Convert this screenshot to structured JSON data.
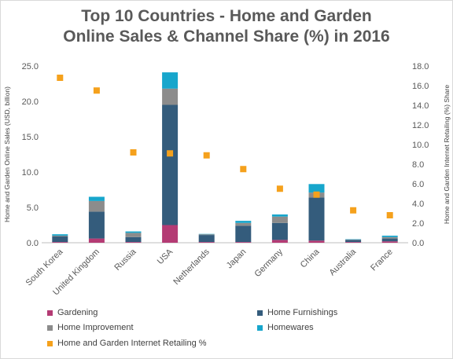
{
  "title_line1": "Top 10 Countries - Home and Garden",
  "title_line2": "Online Sales & Channel Share (%) in 2016",
  "colors": {
    "Gardening": "#b43b74",
    "Home Furnishings": "#345c7c",
    "Home Improvement": "#8c8c8c",
    "Homewares": "#17a6cc",
    "Home and Garden Internet Retailing %": "#f5a11c"
  },
  "chart_data": {
    "type": "bar",
    "stacked": true,
    "title": "Top 10 Countries - Home and Garden Online Sales & Channel Share (%) in 2016",
    "categories": [
      "South Korea",
      "United Kingdom",
      "Russia",
      "USA",
      "Netherlands",
      "Japan",
      "Germany",
      "China",
      "Australia",
      "France"
    ],
    "ylabel": "Home and Garden Online Sales (USD, billion)",
    "y2label": "Home and Garden Internet Retailing (%) Share",
    "ylim": [
      0,
      25
    ],
    "y2lim": [
      0,
      18
    ],
    "yticks": [
      "0.0",
      "5.0",
      "10.0",
      "15.0",
      "20.0",
      "25.0"
    ],
    "y2ticks": [
      "0.0",
      "2.0",
      "4.0",
      "6.0",
      "8.0",
      "10.0",
      "12.0",
      "14.0",
      "16.0",
      "18.0"
    ],
    "series": [
      {
        "name": "Gardening",
        "values": [
          0.1,
          0.6,
          0.1,
          2.5,
          0.1,
          0.1,
          0.4,
          0.3,
          0.1,
          0.2
        ]
      },
      {
        "name": "Home Furnishings",
        "values": [
          0.8,
          3.8,
          0.7,
          17.0,
          1.0,
          2.3,
          2.4,
          6.1,
          0.3,
          0.4
        ]
      },
      {
        "name": "Home Improvement",
        "values": [
          0.1,
          1.5,
          0.6,
          2.3,
          0.1,
          0.4,
          0.9,
          0.7,
          0.05,
          0.2
        ]
      },
      {
        "name": "Homewares",
        "values": [
          0.2,
          0.6,
          0.2,
          2.3,
          0.05,
          0.3,
          0.3,
          1.2,
          0.05,
          0.2
        ]
      }
    ],
    "line_series": {
      "name": "Home and Garden Internet Retailing %",
      "axis": "secondary",
      "values": [
        16.8,
        15.5,
        9.2,
        9.1,
        8.9,
        7.5,
        5.5,
        4.9,
        3.3,
        2.8
      ]
    },
    "legend_position": "bottom",
    "grid": false
  }
}
